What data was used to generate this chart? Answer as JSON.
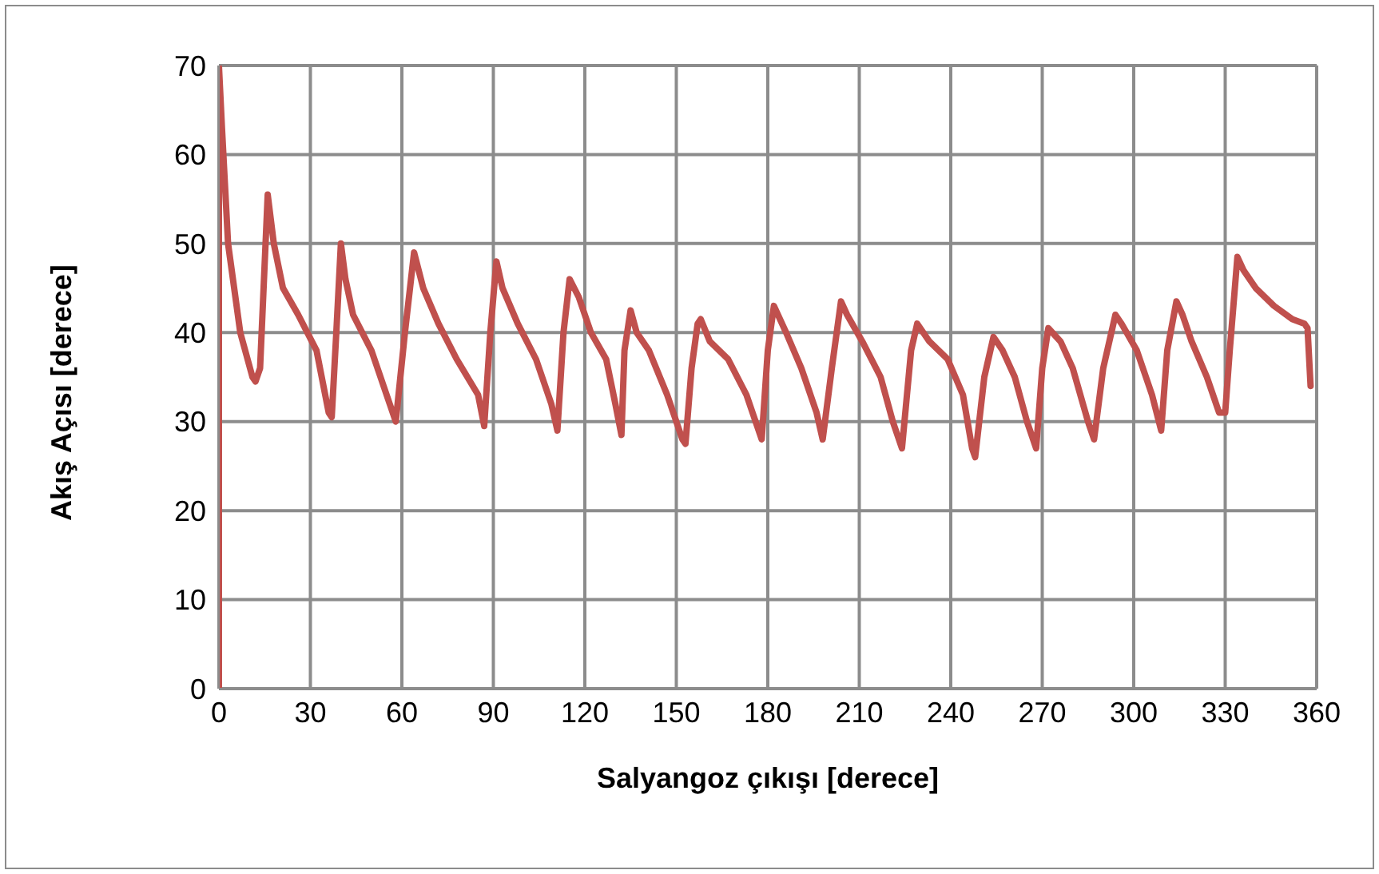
{
  "chart_data": {
    "type": "line",
    "xlabel": "Salyangoz çıkışı [derece]",
    "ylabel": "Akış Açısı [derece]",
    "xlim": [
      0,
      360
    ],
    "xticks": [
      0,
      30,
      60,
      90,
      120,
      150,
      180,
      210,
      240,
      270,
      300,
      330,
      360
    ],
    "ylim": [
      0,
      70
    ],
    "yticks": [
      0,
      10,
      20,
      30,
      40,
      50,
      60,
      70
    ],
    "grid": true,
    "legend": false,
    "marker": "none",
    "line_style": "solid",
    "series": [
      {
        "color": "#c0504d",
        "x": [
          0,
          0,
          1,
          3,
          7,
          11,
          12,
          13.5,
          16,
          18,
          21,
          26,
          32,
          36,
          37,
          38.5,
          40,
          41.5,
          44,
          50,
          56,
          58,
          61,
          64,
          67,
          72,
          78,
          85,
          87,
          89,
          91,
          93,
          98,
          104,
          109,
          111,
          113,
          115,
          118,
          122,
          127,
          130,
          132,
          133,
          135,
          137,
          141,
          147,
          152,
          153,
          155,
          157,
          158,
          161,
          167,
          173,
          178,
          180,
          182,
          186,
          191,
          196,
          198,
          201,
          204,
          206,
          211,
          217,
          221,
          224,
          227,
          229,
          233,
          239,
          244,
          247,
          248,
          251,
          254,
          257,
          261,
          265,
          268,
          270,
          272,
          276,
          280,
          285,
          287,
          290,
          294,
          296,
          301,
          306,
          309,
          311,
          314,
          316,
          319,
          324,
          328,
          330,
          331.5,
          334,
          336,
          340,
          346,
          352,
          356,
          357,
          358
        ],
        "values": [
          0,
          70,
          63,
          50,
          40,
          35,
          34.5,
          36,
          55.5,
          50,
          45,
          42,
          38,
          31,
          30.5,
          40,
          50,
          46,
          42,
          38,
          32,
          30,
          40,
          49,
          45,
          41,
          37,
          33,
          29.5,
          40,
          48,
          45,
          41,
          37,
          32,
          29,
          40,
          46,
          44,
          40,
          37,
          32,
          28.5,
          38,
          42.5,
          40,
          38,
          33,
          28,
          27.5,
          36,
          41,
          41.5,
          39,
          37,
          33,
          28,
          38,
          43,
          40,
          36,
          31,
          28,
          36,
          43.5,
          42,
          39,
          35,
          30,
          27,
          38,
          41,
          39,
          37,
          33,
          27,
          26,
          35,
          39.5,
          38,
          35,
          30,
          27,
          36,
          40.5,
          39,
          36,
          30,
          28,
          36,
          42,
          41,
          38,
          33,
          29,
          38,
          43.5,
          42,
          39,
          35,
          31,
          31,
          38,
          48.5,
          47,
          45,
          43,
          41.5,
          41,
          40.5,
          34
        ]
      }
    ]
  }
}
